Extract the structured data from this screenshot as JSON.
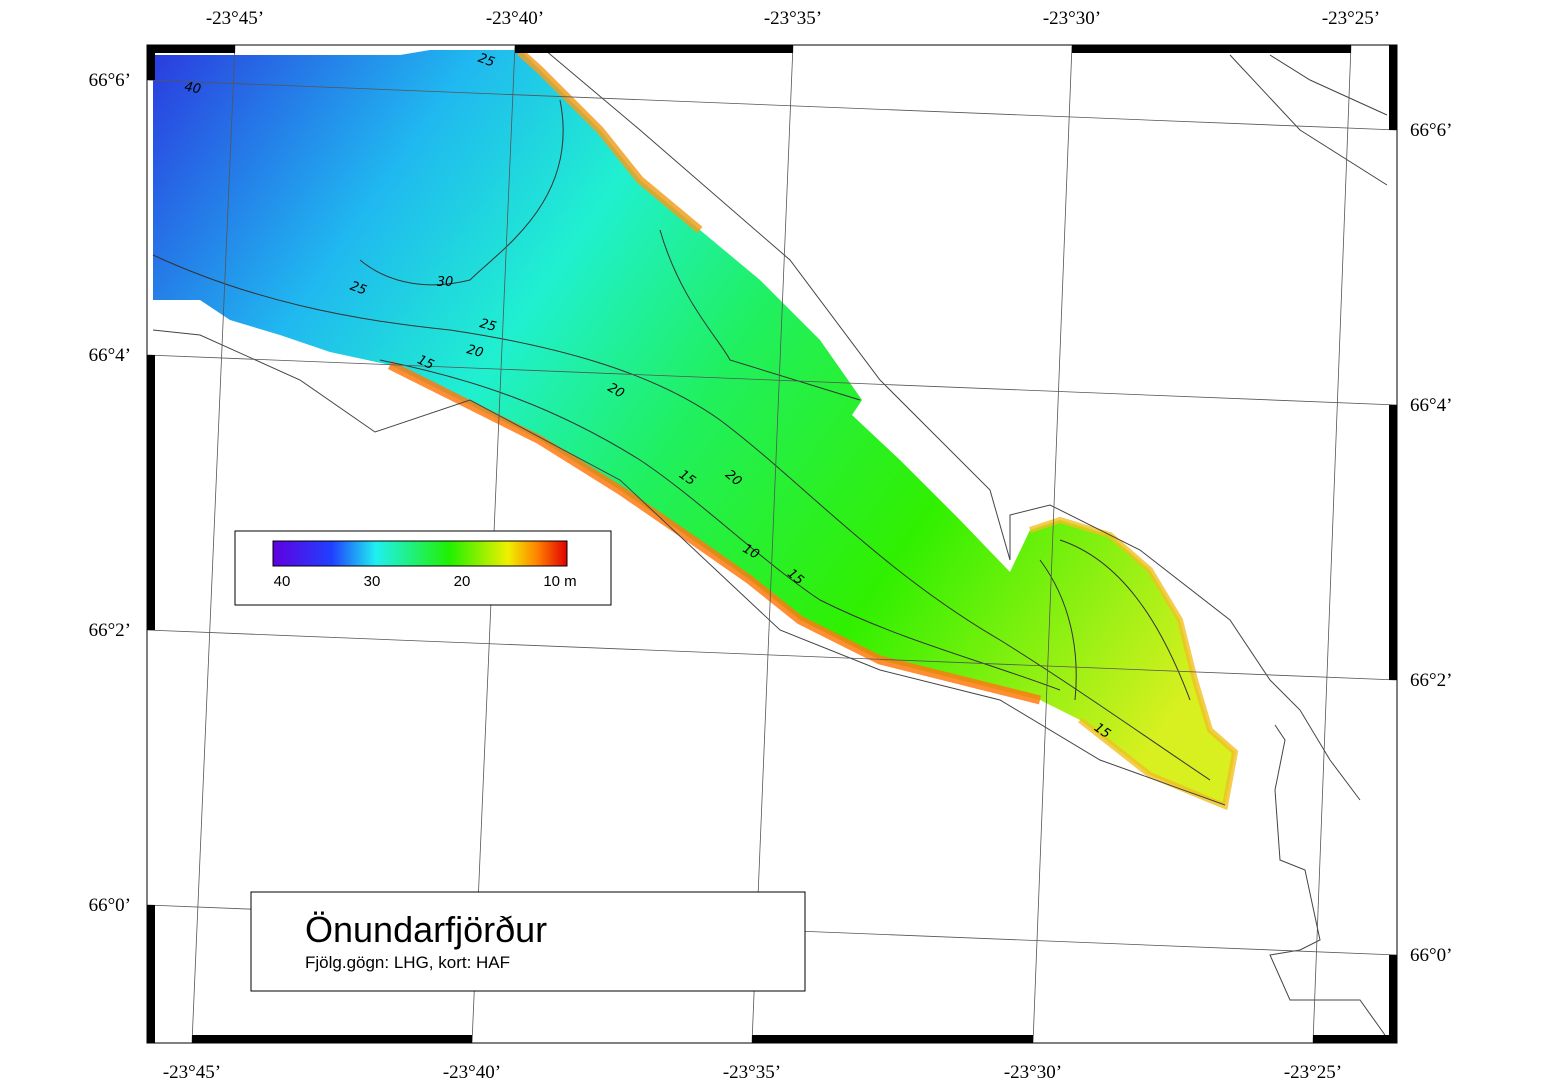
{
  "title": "Önundarfjörður",
  "subtitle": "Fjölg.gögn: LHG, kort: HAF",
  "top_labels": [
    "-23°45’",
    "-23°40’",
    "-23°35’",
    "-23°30’",
    "-23°25’"
  ],
  "bottom_labels": [
    "-23°45’",
    "-23°40’",
    "-23°35’",
    "-23°30’",
    "-23°25’"
  ],
  "left_labels": [
    "66°6’",
    "66°4’",
    "66°2’",
    "66°0’"
  ],
  "right_labels": [
    "66°6’",
    "66°4’",
    "66°2’",
    "66°0’"
  ],
  "colorbar_labels": [
    "40",
    "30",
    "20",
    "10 m"
  ],
  "contour_labels": [
    "40",
    "25",
    "25",
    "30",
    "25",
    "20",
    "15",
    "20",
    "15",
    "20",
    "10",
    "15",
    "15"
  ]
}
